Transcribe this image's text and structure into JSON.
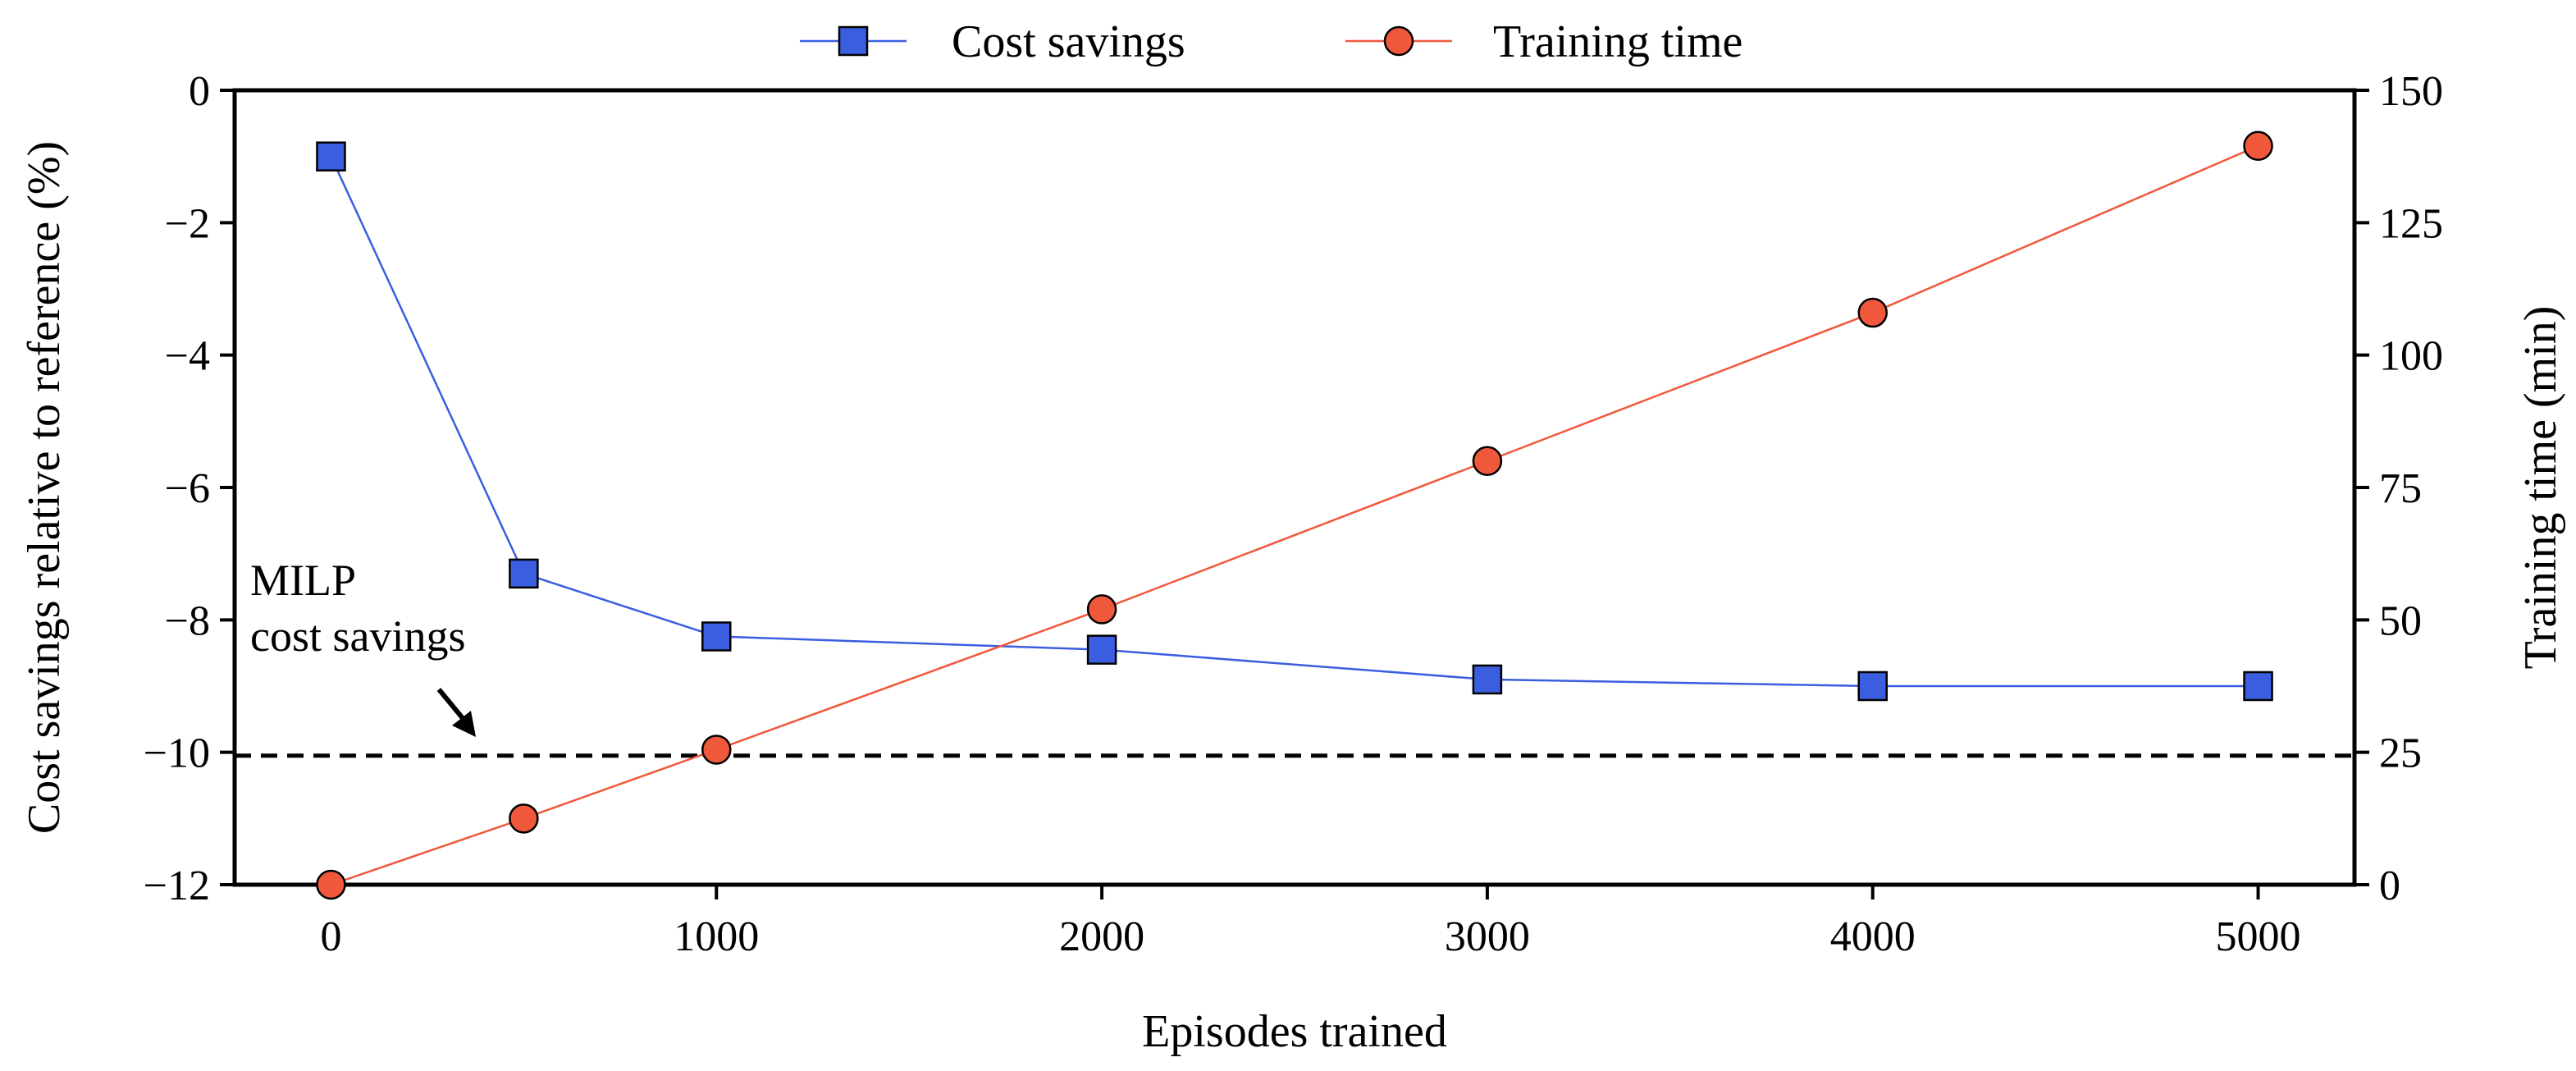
{
  "chart_data": {
    "type": "line",
    "title": "",
    "xlabel": "Episodes trained",
    "ylabel_left": "Cost savings relative to reference (%)",
    "ylabel_right": "Training time (min)",
    "xlim": [
      -250,
      5250
    ],
    "ylim_left": [
      -12,
      0
    ],
    "ylim_right": [
      0,
      150
    ],
    "x_ticks": [
      0,
      1000,
      2000,
      3000,
      4000,
      5000
    ],
    "y_left_ticks": [
      0,
      -2,
      -4,
      -6,
      -8,
      -10,
      -12
    ],
    "y_right_ticks": [
      150,
      125,
      100,
      75,
      50,
      25,
      0
    ],
    "grid": false,
    "legend_position": "top-center",
    "series": [
      {
        "name": "Cost savings",
        "axis": "left",
        "marker": "square",
        "color": "#3b5ee0",
        "x": [
          0,
          500,
          1000,
          2000,
          3000,
          4000,
          5000
        ],
        "values": [
          -1.0,
          -7.3,
          -8.25,
          -8.45,
          -8.9,
          -9.0,
          -9.0
        ]
      },
      {
        "name": "Training time",
        "axis": "right",
        "marker": "circle",
        "color": "#f0583c",
        "x": [
          0,
          500,
          1000,
          2000,
          3000,
          4000,
          5000
        ],
        "values": [
          0,
          12.5,
          25.5,
          52,
          80,
          108,
          139.5
        ]
      }
    ],
    "reference_line": {
      "axis": "left",
      "value": -10.05,
      "style": "dashed",
      "color": "#000000"
    },
    "annotation": {
      "line1": "MILP",
      "line2": "cost savings"
    }
  }
}
